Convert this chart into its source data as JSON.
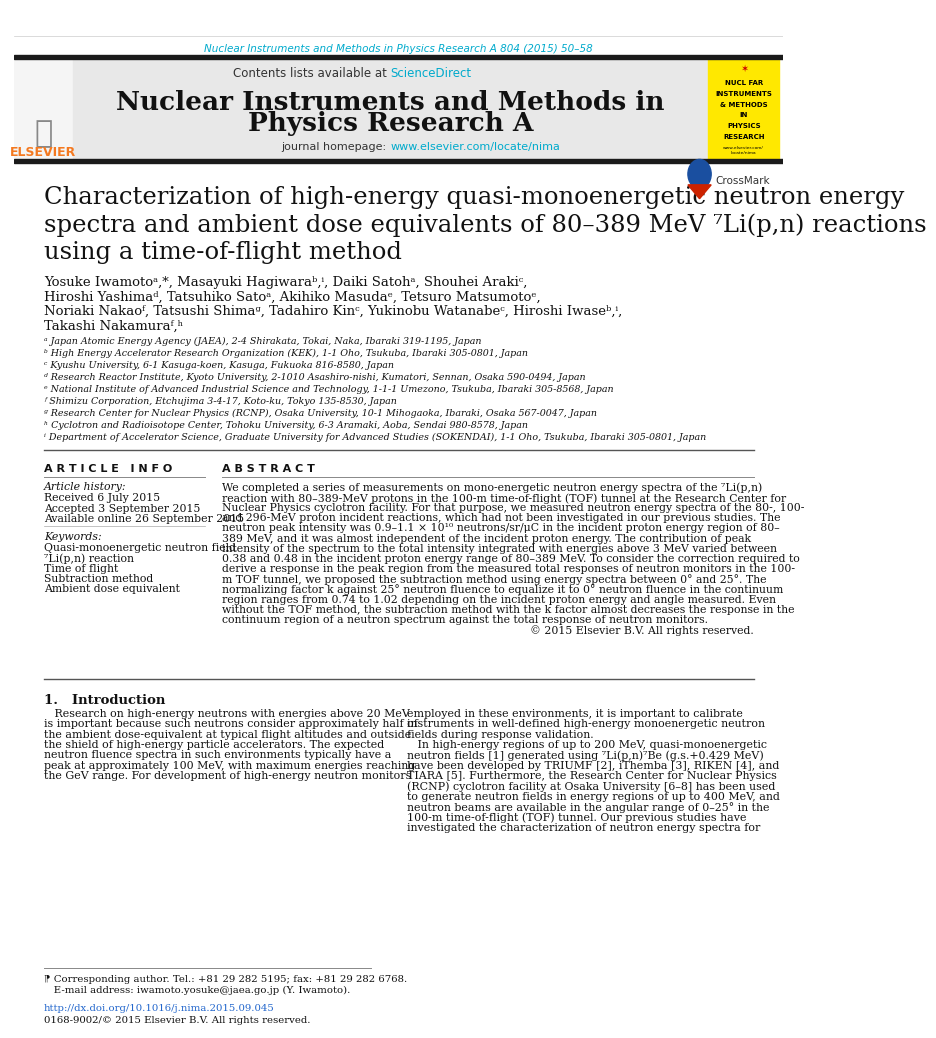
{
  "bg_color": "#ffffff",
  "top_journal_line": "Nuclear Instruments and Methods in Physics Research A 804 (2015) 50–58",
  "top_journal_color": "#00aacc",
  "header_bg": "#e8e8e8",
  "header_contents": "Contents lists available at",
  "header_sciencedirect": "ScienceDirect",
  "header_sciencedirect_color": "#00aacc",
  "journal_title_line1": "Nuclear Instruments and Methods in",
  "journal_title_line2": "Physics Research A",
  "journal_homepage_label": "journal homepage:",
  "journal_homepage_url": "www.elsevier.com/locate/nima",
  "journal_homepage_color": "#00aacc",
  "article_title_line1": "Characterization of high-energy quasi-monoenergetic neutron energy",
  "article_title_line2": "spectra and ambient dose equivalents of 80–389 MeV ⁷Li(p,n) reactions",
  "article_title_line3": "using a time-of-flight method",
  "authors_line1": "Yosuke Iwamotoᵃ,*, Masayuki Hagiwaraᵇ,ⁱ, Daiki Satohᵃ, Shouhei Arakiᶜ,",
  "authors_line2": "Hiroshi Yashimaᵈ, Tatsuhiko Satoᵃ, Akihiko Masudaᵉ, Tetsuro Matsumotoᵉ,",
  "authors_line3": "Noriaki Nakaoᶠ, Tatsushi Shimaᵍ, Tadahiro Kinᶜ, Yukinobu Watanabeᶜ, Hiroshi Iwaseᵇ,ⁱ,",
  "authors_line4": "Takashi Nakamuraᶠ,ʰ",
  "affiliations": [
    "ᵃ Japan Atomic Energy Agency (JAEA), 2-4 Shirakata, Tokai, Naka, Ibaraki 319-1195, Japan",
    "ᵇ High Energy Accelerator Research Organization (KEK), 1-1 Oho, Tsukuba, Ibaraki 305-0801, Japan",
    "ᶜ Kyushu University, 6-1 Kasuga-koen, Kasuga, Fukuoka 816-8580, Japan",
    "ᵈ Research Reactor Institute, Kyoto University, 2-1010 Asashiro-nishi, Kumatori, Sennan, Osaka 590-0494, Japan",
    "ᵉ National Institute of Advanced Industrial Science and Technology, 1-1-1 Umezono, Tsukuba, Ibaraki 305-8568, Japan",
    "ᶠ Shimizu Corporation, Etchujima 3-4-17, Koto-ku, Tokyo 135-8530, Japan",
    "ᵍ Research Center for Nuclear Physics (RCNP), Osaka University, 10-1 Mihogaoka, Ibaraki, Osaka 567-0047, Japan",
    "ʰ Cyclotron and Radioisotope Center, Tohoku University, 6-3 Aramaki, Aoba, Sendai 980-8578, Japan",
    "ⁱ Department of Accelerator Science, Graduate University for Advanced Studies (SOKENDAI), 1-1 Oho, Tsukuba, Ibaraki 305-0801, Japan"
  ],
  "article_info_title": "A R T I C L E   I N F O",
  "article_history_label": "Article history:",
  "article_history": [
    "Received 6 July 2015",
    "Accepted 3 September 2015",
    "Available online 26 September 2015"
  ],
  "keywords_label": "Keywords:",
  "keywords": [
    "Quasi-monoenergetic neutron field",
    "⁷Li(p,n) reaction",
    "Time of flight",
    "Subtraction method",
    "Ambient dose equivalent"
  ],
  "abstract_title": "A B S T R A C T",
  "abstract_lines": [
    "We completed a series of measurements on mono-energetic neutron energy spectra of the ⁷Li(p,n)",
    "reaction with 80–389-MeV protons in the 100-m time-of-flight (TOF) tunnel at the Research Center for",
    "Nuclear Physics cyclotron facility. For that purpose, we measured neutron energy spectra of the 80-, 100-",
    "and 296-MeV proton incident reactions, which had not been investigated in our previous studies. The",
    "neutron peak intensity was 0.9–1.1 × 10¹⁰ neutrons/sr/μC in the incident proton energy region of 80–",
    "389 MeV, and it was almost independent of the incident proton energy. The contribution of peak",
    "intensity of the spectrum to the total intensity integrated with energies above 3 MeV varied between",
    "0.38 and 0.48 in the incident proton energy range of 80–389 MeV. To consider the correction required to",
    "derive a response in the peak region from the measured total responses of neutron monitors in the 100-",
    "m TOF tunnel, we proposed the subtraction method using energy spectra between 0° and 25°. The",
    "normalizing factor k against 25° neutron fluence to equalize it to 0° neutron fluence in the continuum",
    "region ranges from 0.74 to 1.02 depending on the incident proton energy and angle measured. Even",
    "without the TOF method, the subtraction method with the k factor almost decreases the response in the",
    "continuum region of a neutron spectrum against the total response of neutron monitors.",
    "© 2015 Elsevier B.V. All rights reserved."
  ],
  "section1_title": "1.   Introduction",
  "section1_col1_lines": [
    "   Research on high-energy neutrons with energies above 20 MeV",
    "is important because such neutrons consider approximately half of",
    "the ambient dose-equivalent at typical flight altitudes and outside",
    "the shield of high-energy particle accelerators. The expected",
    "neutron fluence spectra in such environments typically have a",
    "peak at approximately 100 MeV, with maximum energies reaching",
    "the GeV range. For development of high-energy neutron monitors"
  ],
  "section1_col2_lines": [
    "employed in these environments, it is important to calibrate",
    "instruments in well-defined high-energy monoenergetic neutron",
    "fields during response validation.",
    "   In high-energy regions of up to 200 MeV, quasi-monoenergetic",
    "neutron fields [1] generated using ⁷Li(p,n)⁷Be (g.s.+0.429 MeV)",
    "have been developed by TRIUMF [2], iThemba [3], RIKEN [4], and",
    "TIARA [5]. Furthermore, the Research Center for Nuclear Physics",
    "(RCNP) cyclotron facility at Osaka University [6–8] has been used",
    "to generate neutron fields in energy regions of up to 400 MeV, and",
    "neutron beams are available in the angular range of 0–25° in the",
    "100-m time-of-flight (TOF) tunnel. Our previous studies have",
    "investigated the characterization of neutron energy spectra for"
  ],
  "footnote_star": "⁋ Corresponding author. Tel.: +81 29 282 5195; fax: +81 29 282 6768.",
  "footnote_email": "   E-mail address: iwamoto.yosuke@jaea.go.jp (Y. Iwamoto).",
  "doi_line": "http://dx.doi.org/10.1016/j.nima.2015.09.045",
  "issn_line": "0168-9002/© 2015 Elsevier B.V. All rights reserved.",
  "elsevier_orange": "#f47920",
  "yellow_sidebar_bg": "#ffe800",
  "yellow_sidebar_lines": [
    "NUCL FAR",
    "INSTRUMENTS",
    "& METHODS",
    "IN",
    "PHYSICS",
    "RESEARCH"
  ],
  "crossmark_text": "CrossMark"
}
